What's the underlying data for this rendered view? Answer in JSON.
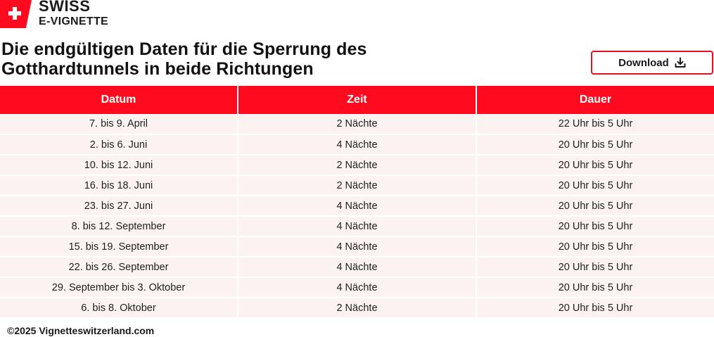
{
  "brand": {
    "line1": "SWISS",
    "line2": "E-VIGNETTE",
    "flag_color": "#ff0a1e"
  },
  "title": "Die endgültigen Daten für die Sperrung des Gotthardtunnels in beide Richtungen",
  "download": {
    "label": "Download",
    "icon": "download-icon",
    "border_color": "#e8101e"
  },
  "table": {
    "header_color": "#ff0a1e",
    "row_color": "#fcf2f2",
    "headers": [
      "Datum",
      "Zeit",
      "Dauer"
    ],
    "rows": [
      [
        "7. bis 9. April",
        "2 Nächte",
        "22 Uhr bis 5 Uhr"
      ],
      [
        "2. bis 6. Juni",
        "4 Nächte",
        "20 Uhr bis 5 Uhr"
      ],
      [
        "10. bis 12. Juni",
        "2 Nächte",
        "20 Uhr bis 5 Uhr"
      ],
      [
        "16. bis 18. Juni",
        "2 Nächte",
        "20 Uhr bis 5 Uhr"
      ],
      [
        "23. bis 27. Juni",
        "4 Nächte",
        "20 Uhr bis 5 Uhr"
      ],
      [
        "8. bis 12. September",
        "4 Nächte",
        "20 Uhr bis 5 Uhr"
      ],
      [
        "15. bis 19. September",
        "4 Nächte",
        "20 Uhr bis 5 Uhr"
      ],
      [
        "22. bis 26. September",
        "4 Nächte",
        "20 Uhr bis 5 Uhr"
      ],
      [
        "29. September bis 3. Oktober",
        "4 Nächte",
        "20 Uhr bis 5 Uhr"
      ],
      [
        "6. bis 8. Oktober",
        "2 Nächte",
        "20 Uhr bis 5 Uhr"
      ]
    ]
  },
  "footer": "©2025 Vignetteswitzerland.com"
}
